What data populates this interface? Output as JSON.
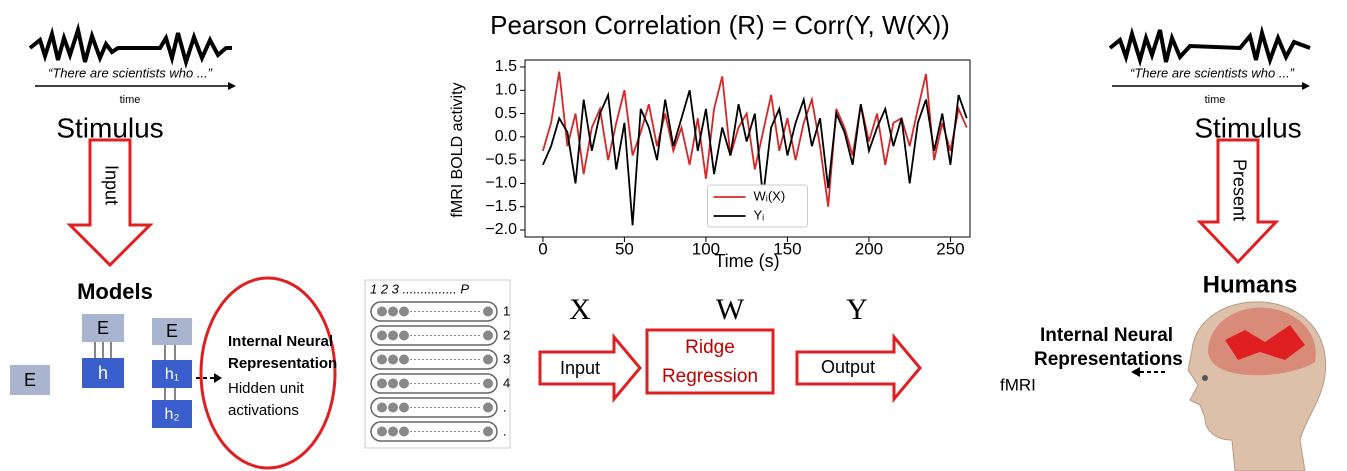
{
  "left": {
    "quote": "“There are scientists who ...”",
    "time": "time",
    "stimulus": "Stimulus",
    "arrow": "Input",
    "models": "Models",
    "units": [
      "E",
      "E",
      "h",
      "E",
      "h₁",
      "h₂"
    ],
    "representation": [
      "Internal Neural",
      "Representation"
    ],
    "hidden": [
      "Hidden unit",
      "activations"
    ]
  },
  "matrix": {
    "header": "1 2 3 ............... P",
    "rows": [
      "1",
      "2",
      "3",
      "4",
      ".",
      "."
    ]
  },
  "regression": {
    "x": "X",
    "w": "W",
    "y": "Y",
    "input": "Input",
    "box": [
      "Ridge",
      "Regression"
    ],
    "output": "Output"
  },
  "right": {
    "quote": "“There are scientists who ...”",
    "time": "time",
    "stimulus": "Stimulus",
    "arrow": "Present",
    "humans": "Humans",
    "representation": [
      "Internal Neural",
      "Representations"
    ],
    "fmri": "fMRI"
  },
  "chart_data": {
    "type": "line",
    "title": "Pearson Correlation (R) = Corr(Y, W(X))",
    "x_label": "Time (s)",
    "y_label": "fMRI BOLD activity",
    "x": [
      0,
      5,
      10,
      15,
      20,
      25,
      30,
      35,
      40,
      45,
      50,
      55,
      60,
      65,
      70,
      75,
      80,
      85,
      90,
      95,
      100,
      105,
      110,
      115,
      120,
      125,
      130,
      135,
      140,
      145,
      150,
      155,
      160,
      165,
      170,
      175,
      180,
      185,
      190,
      195,
      200,
      205,
      210,
      215,
      220,
      225,
      230,
      235,
      240,
      245,
      250,
      255,
      260
    ],
    "series": [
      {
        "name": "Wᵢ(X)",
        "color": "#d62728",
        "values": [
          -0.3,
          0.3,
          1.4,
          -0.2,
          0.5,
          -0.8,
          0.2,
          0.6,
          -0.5,
          0.3,
          1.0,
          -0.4,
          0.1,
          0.7,
          -0.2,
          0.5,
          -0.3,
          0.2,
          -0.6,
          0.4,
          -0.9,
          0.6,
          1.3,
          -0.4,
          0.2,
          0.5,
          -0.7,
          0.1,
          0.9,
          -0.3,
          0.4,
          -0.5,
          0.3,
          0.8,
          -0.2,
          -1.5,
          0.6,
          0.2,
          -0.4,
          0.7,
          -0.1,
          0.5,
          -0.6,
          0.3,
          0.4,
          -0.2,
          0.6,
          1.35,
          -0.5,
          0.3,
          -0.3,
          0.6,
          0.2
        ]
      },
      {
        "name": "Yᵢ",
        "color": "#000000",
        "values": [
          -0.6,
          -0.2,
          0.4,
          0.1,
          -1.0,
          0.8,
          -0.3,
          0.5,
          0.9,
          -0.7,
          0.3,
          -1.9,
          0.6,
          0.2,
          -0.5,
          0.8,
          -0.2,
          0.4,
          1.0,
          -0.3,
          0.6,
          -0.8,
          0.2,
          -0.4,
          0.7,
          -0.1,
          0.5,
          -1.3,
          0.2,
          0.6,
          -0.4,
          0.3,
          0.8,
          -0.2,
          0.4,
          -1.1,
          0.5,
          0.1,
          -0.6,
          0.7,
          -0.3,
          0.2,
          0.6,
          -0.2,
          0.4,
          -1.0,
          0.3,
          0.8,
          -0.3,
          0.5,
          -0.6,
          0.9,
          0.4
        ]
      }
    ],
    "xlim": [
      -11,
      262
    ],
    "ylim": [
      -2.15,
      1.65
    ],
    "xticks": [
      0,
      50,
      100,
      150,
      200,
      250
    ],
    "yticks": [
      {
        "value": 1.5,
        "label": "1.5"
      },
      {
        "value": 1,
        "label": "1.0"
      },
      {
        "value": 0.5,
        "label": "0.5"
      },
      {
        "value": 0,
        "label": "0.0"
      },
      {
        "value": -0.5,
        "label": "−0.5"
      },
      {
        "value": -1,
        "label": "−1.0"
      },
      {
        "value": -1.5,
        "label": "−1.5"
      },
      {
        "value": -2,
        "label": "−2.0"
      }
    ],
    "legend": "lower center"
  }
}
